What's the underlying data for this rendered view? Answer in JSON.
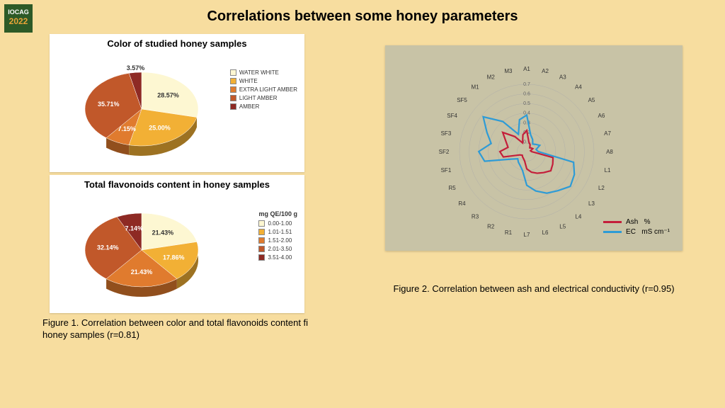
{
  "logo": {
    "line1": "IOCAG",
    "line2": "2022"
  },
  "title": "Correlations between some honey parameters",
  "pie1": {
    "title": "Color of studied honey samples",
    "slices": [
      {
        "label": "WATER WHITE",
        "value": 28.57,
        "color": "#fdf7d2",
        "pct": "28.57%"
      },
      {
        "label": "WHITE",
        "value": 25.0,
        "color": "#f2b035",
        "pct": "25.00%"
      },
      {
        "label": "EXTRA LIGHT AMBER",
        "value": 7.15,
        "color": "#e07b2e",
        "pct": "7.15%"
      },
      {
        "label": "LIGHT AMBER",
        "value": 35.71,
        "color": "#c1582a",
        "pct": "35.71%"
      },
      {
        "label": "AMBER",
        "value": 3.57,
        "color": "#8e2a24",
        "pct": "3.57%"
      }
    ]
  },
  "pie2": {
    "title": "Total flavonoids content in honey samples",
    "legend_head": "mg QE/100 g",
    "slices": [
      {
        "label": "0.00-1.00",
        "value": 21.43,
        "color": "#fdf7d2",
        "pct": "21.43%"
      },
      {
        "label": "1.01-1.51",
        "value": 17.86,
        "color": "#f2b035",
        "pct": "17.86%"
      },
      {
        "label": "1.51-2.00",
        "value": 21.43,
        "color": "#e07b2e",
        "pct": "21.43%"
      },
      {
        "label": "2.01-3.50",
        "value": 32.14,
        "color": "#c1582a",
        "pct": "32.14%"
      },
      {
        "label": "3.51-4.00",
        "value": 7.14,
        "color": "#8e2a24",
        "pct": "7.14%"
      }
    ]
  },
  "fig1_caption": "Figure 1. Correlation between color and total flavonoids content fi honey samples (r=0.81)",
  "radar": {
    "labels": [
      "A1",
      "A2",
      "A3",
      "A4",
      "A5",
      "A6",
      "A7",
      "A8",
      "L1",
      "L2",
      "L3",
      "L4",
      "L5",
      "L6",
      "L7",
      "R1",
      "R2",
      "R3",
      "R4",
      "R5",
      "SF1",
      "SF2",
      "SF3",
      "SF4",
      "SF5",
      "M1",
      "M2",
      "M3"
    ],
    "ticks": [
      "0.0",
      "0.1",
      "0.2",
      "0.3",
      "0.4",
      "0.5",
      "0.6",
      "0.7"
    ],
    "max": 0.7,
    "series": [
      {
        "name": "Ash",
        "unit": "%",
        "color": "#c41e3a",
        "values": [
          0.22,
          0.1,
          0.08,
          0.05,
          0.06,
          0.07,
          0.04,
          0.05,
          0.28,
          0.3,
          0.32,
          0.28,
          0.25,
          0.22,
          0.18,
          0.1,
          0.08,
          0.07,
          0.06,
          0.08,
          0.25,
          0.28,
          0.2,
          0.24,
          0.32,
          0.2,
          0.1,
          0.18
        ]
      },
      {
        "name": "EC",
        "unit": "mS cm⁻¹",
        "color": "#2e9bd6",
        "values": [
          0.38,
          0.18,
          0.14,
          0.1,
          0.12,
          0.15,
          0.1,
          0.12,
          0.5,
          0.55,
          0.58,
          0.52,
          0.48,
          0.42,
          0.35,
          0.2,
          0.16,
          0.14,
          0.12,
          0.18,
          0.45,
          0.5,
          0.38,
          0.46,
          0.58,
          0.4,
          0.2,
          0.34
        ]
      }
    ]
  },
  "fig2_caption": "Figure 2. Correlation between ash and electrical conductivity (r=0.95)"
}
